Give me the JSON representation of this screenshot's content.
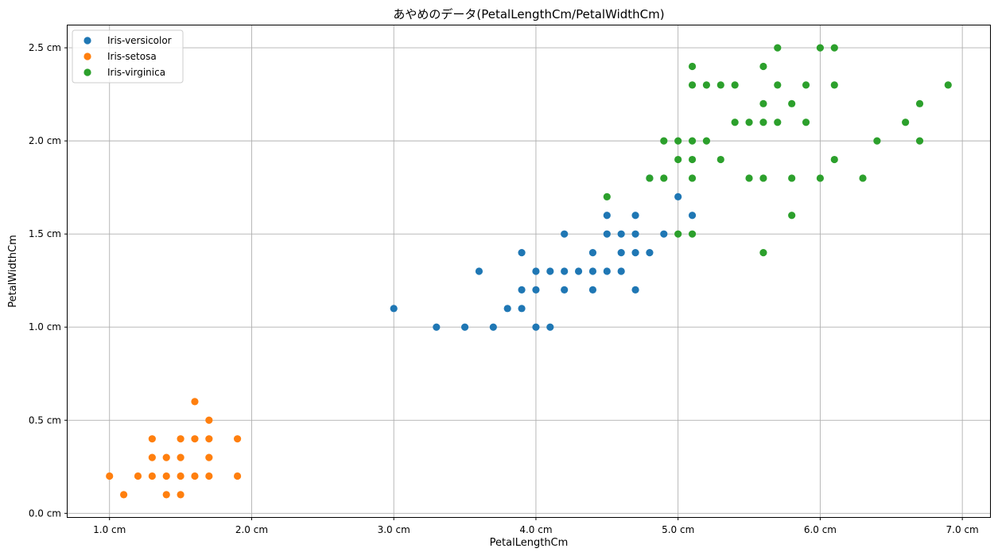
{
  "chart_data": {
    "type": "scatter",
    "title": "あやめのデータ(PetalLengthCm/PetalWidthCm)",
    "xlabel": "PetalLengthCm",
    "ylabel": "PetalWidthCm",
    "xlim": [
      0.705,
      7.195
    ],
    "ylim": [
      -0.02,
      2.62
    ],
    "x_ticks": [
      1.0,
      2.0,
      3.0,
      4.0,
      5.0,
      6.0,
      7.0
    ],
    "y_ticks": [
      0.0,
      0.5,
      1.0,
      1.5,
      2.0,
      2.5
    ],
    "tick_suffix": " cm",
    "grid": true,
    "legend_position": "top-left",
    "series": [
      {
        "name": "Iris-versicolor",
        "color": "#1f77b4",
        "points": [
          [
            3.0,
            1.1
          ],
          [
            3.3,
            1.0
          ],
          [
            3.5,
            1.0
          ],
          [
            3.6,
            1.3
          ],
          [
            3.7,
            1.0
          ],
          [
            3.8,
            1.1
          ],
          [
            3.9,
            1.1
          ],
          [
            3.9,
            1.2
          ],
          [
            3.9,
            1.4
          ],
          [
            4.0,
            1.0
          ],
          [
            4.0,
            1.2
          ],
          [
            4.0,
            1.3
          ],
          [
            4.1,
            1.0
          ],
          [
            4.1,
            1.3
          ],
          [
            4.2,
            1.2
          ],
          [
            4.2,
            1.3
          ],
          [
            4.2,
            1.5
          ],
          [
            4.3,
            1.3
          ],
          [
            4.4,
            1.2
          ],
          [
            4.4,
            1.3
          ],
          [
            4.4,
            1.4
          ],
          [
            4.5,
            1.3
          ],
          [
            4.5,
            1.5
          ],
          [
            4.5,
            1.6
          ],
          [
            4.6,
            1.3
          ],
          [
            4.6,
            1.4
          ],
          [
            4.6,
            1.5
          ],
          [
            4.7,
            1.2
          ],
          [
            4.7,
            1.4
          ],
          [
            4.7,
            1.5
          ],
          [
            4.7,
            1.6
          ],
          [
            4.8,
            1.4
          ],
          [
            4.8,
            1.8
          ],
          [
            4.9,
            1.5
          ],
          [
            5.0,
            1.7
          ],
          [
            5.1,
            1.6
          ]
        ]
      },
      {
        "name": "Iris-setosa",
        "color": "#ff7f0e",
        "points": [
          [
            1.0,
            0.2
          ],
          [
            1.1,
            0.1
          ],
          [
            1.2,
            0.2
          ],
          [
            1.3,
            0.2
          ],
          [
            1.3,
            0.3
          ],
          [
            1.3,
            0.4
          ],
          [
            1.4,
            0.1
          ],
          [
            1.4,
            0.2
          ],
          [
            1.4,
            0.3
          ],
          [
            1.5,
            0.1
          ],
          [
            1.5,
            0.2
          ],
          [
            1.5,
            0.3
          ],
          [
            1.5,
            0.4
          ],
          [
            1.6,
            0.2
          ],
          [
            1.6,
            0.4
          ],
          [
            1.6,
            0.6
          ],
          [
            1.7,
            0.2
          ],
          [
            1.7,
            0.3
          ],
          [
            1.7,
            0.4
          ],
          [
            1.7,
            0.5
          ],
          [
            1.9,
            0.2
          ],
          [
            1.9,
            0.4
          ]
        ]
      },
      {
        "name": "Iris-virginica",
        "color": "#2ca02c",
        "points": [
          [
            4.5,
            1.7
          ],
          [
            4.8,
            1.8
          ],
          [
            4.9,
            1.8
          ],
          [
            4.9,
            2.0
          ],
          [
            5.0,
            1.5
          ],
          [
            5.0,
            1.9
          ],
          [
            5.0,
            2.0
          ],
          [
            5.1,
            1.5
          ],
          [
            5.1,
            1.8
          ],
          [
            5.1,
            1.9
          ],
          [
            5.1,
            2.0
          ],
          [
            5.1,
            2.3
          ],
          [
            5.1,
            2.4
          ],
          [
            5.2,
            2.0
          ],
          [
            5.2,
            2.3
          ],
          [
            5.3,
            1.9
          ],
          [
            5.3,
            2.3
          ],
          [
            5.4,
            2.1
          ],
          [
            5.4,
            2.3
          ],
          [
            5.5,
            1.8
          ],
          [
            5.5,
            2.1
          ],
          [
            5.6,
            1.4
          ],
          [
            5.6,
            1.8
          ],
          [
            5.6,
            2.1
          ],
          [
            5.6,
            2.2
          ],
          [
            5.6,
            2.4
          ],
          [
            5.7,
            2.1
          ],
          [
            5.7,
            2.3
          ],
          [
            5.7,
            2.5
          ],
          [
            5.8,
            1.6
          ],
          [
            5.8,
            1.8
          ],
          [
            5.8,
            2.2
          ],
          [
            5.9,
            2.1
          ],
          [
            5.9,
            2.3
          ],
          [
            6.0,
            1.8
          ],
          [
            6.0,
            2.5
          ],
          [
            6.1,
            1.9
          ],
          [
            6.1,
            2.3
          ],
          [
            6.1,
            2.5
          ],
          [
            6.3,
            1.8
          ],
          [
            6.4,
            2.0
          ],
          [
            6.6,
            2.1
          ],
          [
            6.7,
            2.0
          ],
          [
            6.7,
            2.2
          ],
          [
            6.9,
            2.3
          ]
        ]
      }
    ]
  }
}
